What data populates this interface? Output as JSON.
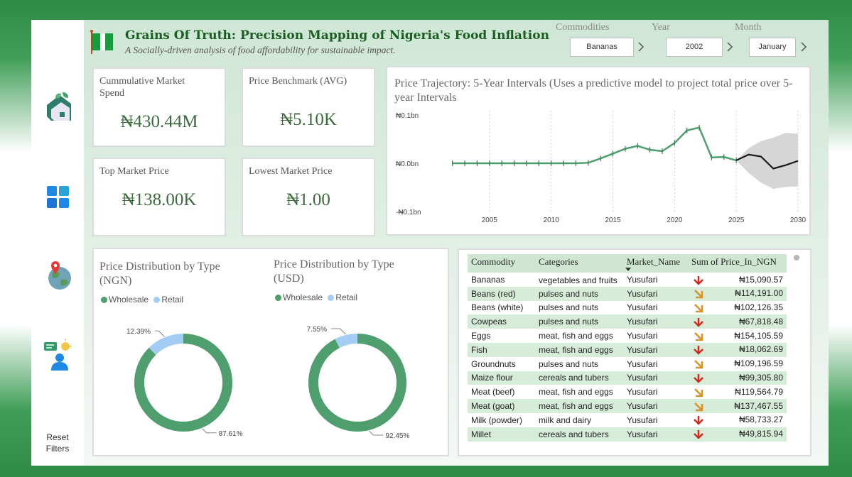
{
  "header": {
    "title": "Grains Of Truth: Precision Mapping of Nigeria's Food Inflation",
    "subtitle": "A Socially-driven analysis of food affordability for sustainable impact."
  },
  "filters": [
    {
      "label": "Commodities",
      "value": "Bananas"
    },
    {
      "label": "Year",
      "value": "2002"
    },
    {
      "label": "Month",
      "value": "January"
    }
  ],
  "sidebar": {
    "icons": [
      "home-icon",
      "dashboard-icon",
      "map-icon",
      "insight-icon"
    ],
    "reset_label": "Reset\nFilters"
  },
  "kpis": [
    {
      "label": "Cummulative Market Spend",
      "value": "₦430.44M"
    },
    {
      "label": "Price Benchmark (AVG)",
      "value": "₦5.10K"
    },
    {
      "label": "Top Market Price",
      "value": "₦138.00K"
    },
    {
      "label": "Lowest Market Price",
      "value": "₦1.00"
    }
  ],
  "colors": {
    "accent": "#4e9e6e",
    "retail": "#a4cdf5",
    "forecast": "#1a1a1a",
    "band": "#d6d6d6",
    "down": "#d02a1c",
    "diag": "#d8932a"
  },
  "chart_data": [
    {
      "type": "line",
      "title": "Price Trajectory: 5-Year Intervals (Uses a predictive model to project total price over 5-year Intervals",
      "x": [
        2002,
        2003,
        2004,
        2005,
        2006,
        2007,
        2008,
        2009,
        2010,
        2011,
        2012,
        2013,
        2014,
        2015,
        2016,
        2017,
        2018,
        2019,
        2020,
        2021,
        2022,
        2023,
        2024,
        2025
      ],
      "values": [
        0,
        0,
        0,
        0,
        0,
        0,
        0,
        0,
        0,
        0,
        0,
        0.001,
        0.01,
        0.02,
        0.03,
        0.036,
        0.028,
        0.025,
        0.042,
        0.068,
        0.074,
        0.012,
        0.013,
        0.006
      ],
      "forecast": {
        "x": [
          2025,
          2026,
          2027,
          2028,
          2029,
          2030
        ],
        "values": [
          0.006,
          0.018,
          0.014,
          -0.011,
          -0.004,
          0.005
        ],
        "lower": [
          0.006,
          -0.02,
          -0.04,
          -0.053,
          -0.049,
          -0.048
        ],
        "upper": [
          0.006,
          0.031,
          0.046,
          0.053,
          0.063,
          0.061
        ]
      },
      "xticks": [
        "2005",
        "2010",
        "2015",
        "2020",
        "2025",
        "2030"
      ],
      "yticks": [
        "₦0.1bn",
        "₦0.0bn",
        "-₦0.1bn"
      ],
      "ylim": [
        -0.1,
        0.1
      ],
      "xlim": [
        2000,
        2030
      ]
    },
    {
      "type": "pie",
      "title": "Price Distribution by Type (NGN)",
      "categories": [
        "Wholesale",
        "Retail"
      ],
      "values": [
        87.61,
        12.39
      ],
      "labels": [
        "87.61%",
        "12.39%"
      ]
    },
    {
      "type": "pie",
      "title": "Price Distribution by Type (USD)",
      "categories": [
        "Wholesale",
        "Retail"
      ],
      "values": [
        92.45,
        7.55
      ],
      "labels": [
        "92.45%",
        "7.55%"
      ]
    }
  ],
  "table": {
    "columns": [
      "Commodity",
      "Categories",
      "Market_Name",
      "Sum of Price_In_NGN"
    ],
    "rows": [
      {
        "commodity": "Bananas",
        "category": "vegetables and fruits",
        "market": "Yusufari",
        "trend": "down",
        "price": "₦15,090.57"
      },
      {
        "commodity": "Beans (red)",
        "category": "pulses and nuts",
        "market": "Yusufari",
        "trend": "diag",
        "price": "₦114,191.00"
      },
      {
        "commodity": "Beans (white)",
        "category": "pulses and nuts",
        "market": "Yusufari",
        "trend": "diag",
        "price": "₦102,126.35"
      },
      {
        "commodity": "Cowpeas",
        "category": "pulses and nuts",
        "market": "Yusufari",
        "trend": "down",
        "price": "₦67,818.48"
      },
      {
        "commodity": "Eggs",
        "category": "meat, fish and eggs",
        "market": "Yusufari",
        "trend": "diag",
        "price": "₦154,105.59"
      },
      {
        "commodity": "Fish",
        "category": "meat, fish and eggs",
        "market": "Yusufari",
        "trend": "down",
        "price": "₦18,062.69"
      },
      {
        "commodity": "Groundnuts",
        "category": "pulses and nuts",
        "market": "Yusufari",
        "trend": "diag",
        "price": "₦109,196.59"
      },
      {
        "commodity": "Maize flour",
        "category": "cereals and tubers",
        "market": "Yusufari",
        "trend": "down",
        "price": "₦99,305.80"
      },
      {
        "commodity": "Meat (beef)",
        "category": "meat, fish and eggs",
        "market": "Yusufari",
        "trend": "diag",
        "price": "₦119,564.79"
      },
      {
        "commodity": "Meat (goat)",
        "category": "meat, fish and eggs",
        "market": "Yusufari",
        "trend": "diag",
        "price": "₦137,467.55"
      },
      {
        "commodity": "Milk (powder)",
        "category": "milk and dairy",
        "market": "Yusufari",
        "trend": "down",
        "price": "₦58,733.27"
      },
      {
        "commodity": "Millet",
        "category": "cereals and tubers",
        "market": "Yusufari",
        "trend": "down",
        "price": "₦49,815.94"
      }
    ]
  }
}
